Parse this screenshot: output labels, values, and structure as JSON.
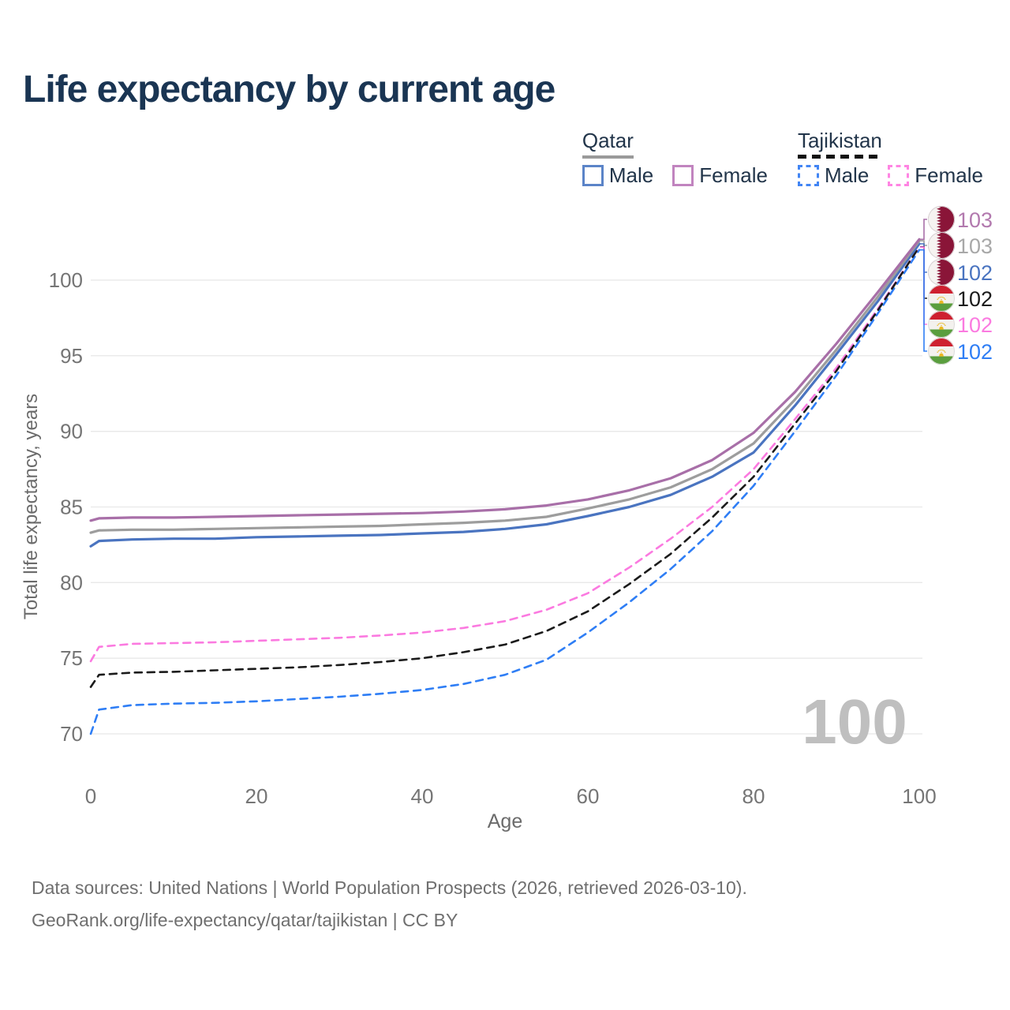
{
  "page": {
    "title": "Life expectancy by current age"
  },
  "legend": {
    "groups": [
      {
        "country": "Qatar",
        "underline_style": "solid",
        "underline_color": "#9a9a9a",
        "items": [
          {
            "label": "Male",
            "color": "#5b84c8",
            "dashed": false
          },
          {
            "label": "Female",
            "color": "#c184bf",
            "dashed": false
          }
        ]
      },
      {
        "country": "Tajikistan",
        "underline_style": "dashed",
        "underline_color": "#111111",
        "items": [
          {
            "label": "Male",
            "color": "#4285f4",
            "dashed": true
          },
          {
            "label": "Female",
            "color": "#ff85e3",
            "dashed": true
          }
        ]
      }
    ]
  },
  "chart_data": {
    "type": "line",
    "title": "Life expectancy by current age",
    "xlabel": "Age",
    "ylabel": "Total life expectancy, years",
    "xlim": [
      0,
      100
    ],
    "ylim": [
      67,
      105
    ],
    "xticks": [
      0,
      20,
      40,
      60,
      80,
      100
    ],
    "yticks": [
      70,
      75,
      80,
      85,
      90,
      95,
      100
    ],
    "grid": true,
    "legend_position": "top-right",
    "age_watermark": "100",
    "colors": {
      "grid": "#e8e8e8",
      "tick_label": "#757575",
      "axis_label": "#6b6b6b",
      "watermark": "#bfbfbf"
    },
    "x": [
      0,
      1,
      5,
      10,
      15,
      20,
      25,
      30,
      35,
      40,
      45,
      50,
      55,
      60,
      65,
      70,
      75,
      80,
      85,
      90,
      95,
      100
    ],
    "series": [
      {
        "id": "qatar-female",
        "name": "Qatar Female",
        "flag": "qatar",
        "color": "#a86fa8",
        "label_color": "#b279ae",
        "dashed": false,
        "end_label": "103",
        "values": [
          84.1,
          84.25,
          84.3,
          84.3,
          84.35,
          84.4,
          84.45,
          84.5,
          84.55,
          84.6,
          84.7,
          84.85,
          85.1,
          85.5,
          86.1,
          86.9,
          88.1,
          89.9,
          92.6,
          95.8,
          99.2,
          102.7
        ]
      },
      {
        "id": "qatar-both",
        "name": "Qatar (both sexes)",
        "flag": "qatar",
        "color": "#9d9d9d",
        "label_color": "#a8a8a8",
        "dashed": false,
        "end_label": "103",
        "values": [
          83.3,
          83.45,
          83.5,
          83.5,
          83.55,
          83.6,
          83.65,
          83.7,
          83.75,
          83.85,
          83.95,
          84.1,
          84.35,
          84.9,
          85.5,
          86.3,
          87.5,
          89.2,
          92.1,
          95.4,
          98.9,
          102.6
        ]
      },
      {
        "id": "qatar-male",
        "name": "Qatar Male",
        "flag": "qatar",
        "color": "#4a74c0",
        "label_color": "#4a74c0",
        "dashed": false,
        "end_label": "102",
        "values": [
          82.4,
          82.75,
          82.85,
          82.9,
          82.9,
          83.0,
          83.05,
          83.1,
          83.15,
          83.25,
          83.35,
          83.55,
          83.85,
          84.4,
          85.0,
          85.8,
          87.0,
          88.6,
          91.7,
          95.1,
          98.6,
          102.4
        ]
      },
      {
        "id": "tajikistan-both",
        "name": "Tajikistan (both sexes)",
        "flag": "tajikistan",
        "color": "#1b1b1b",
        "label_color": "#1b1b1b",
        "dashed": true,
        "end_label": "102",
        "values": [
          73.1,
          73.9,
          74.05,
          74.1,
          74.2,
          74.3,
          74.4,
          74.55,
          74.75,
          75.0,
          75.4,
          75.9,
          76.8,
          78.1,
          79.9,
          81.9,
          84.3,
          87.0,
          90.5,
          94.0,
          98.0,
          102.2
        ]
      },
      {
        "id": "tajikistan-female",
        "name": "Tajikistan Female",
        "flag": "tajikistan",
        "color": "#fb7ae0",
        "label_color": "#fb7ae0",
        "dashed": true,
        "end_label": "102",
        "values": [
          74.8,
          75.75,
          75.95,
          76.0,
          76.05,
          76.15,
          76.25,
          76.35,
          76.5,
          76.7,
          77.0,
          77.45,
          78.2,
          79.3,
          81.0,
          82.9,
          85.0,
          87.5,
          90.8,
          94.2,
          98.1,
          102.18
        ]
      },
      {
        "id": "tajikistan-male",
        "name": "Tajikistan Male",
        "flag": "tajikistan",
        "color": "#2f7ef5",
        "label_color": "#2f7ef5",
        "dashed": true,
        "end_label": "102",
        "values": [
          70.0,
          71.6,
          71.9,
          72.0,
          72.05,
          72.15,
          72.3,
          72.45,
          72.65,
          72.9,
          73.3,
          73.9,
          74.9,
          76.7,
          78.7,
          80.9,
          83.4,
          86.4,
          90.0,
          93.7,
          97.8,
          102.0
        ]
      }
    ]
  },
  "footer": {
    "line1": "Data sources: United Nations | World Population Prospects (2026, retrieved 2026-03-10).",
    "line2": "GeoRank.org/life-expectancy/qatar/tajikistan | CC BY"
  }
}
